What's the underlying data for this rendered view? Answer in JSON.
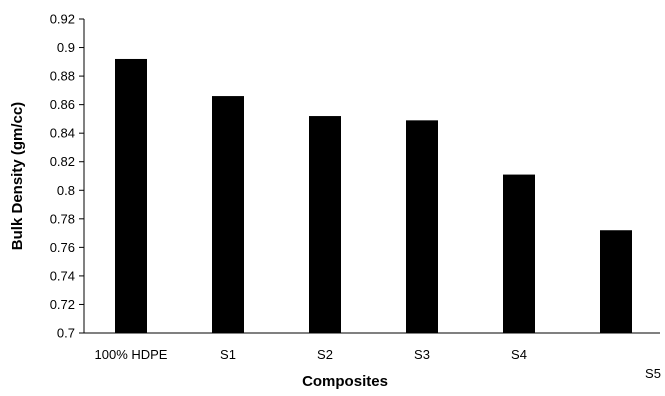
{
  "chart_data": {
    "type": "bar",
    "title": "",
    "xlabel": "Composites",
    "ylabel": "Bulk Density (gm/cc)",
    "categories": [
      "100% HDPE",
      "S1",
      "S2",
      "S3",
      "S4",
      "S5"
    ],
    "values": [
      0.892,
      0.866,
      0.852,
      0.849,
      0.811,
      0.772
    ],
    "ylim": [
      0.7,
      0.92
    ],
    "yticks": [
      "0.7",
      "0.72",
      "0.74",
      "0.76",
      "0.78",
      "0.8",
      "0.82",
      "0.84",
      "0.86",
      "0.88",
      "0.9",
      "0.92"
    ],
    "grid": false,
    "legend": "none",
    "bar_color": "#000000"
  }
}
